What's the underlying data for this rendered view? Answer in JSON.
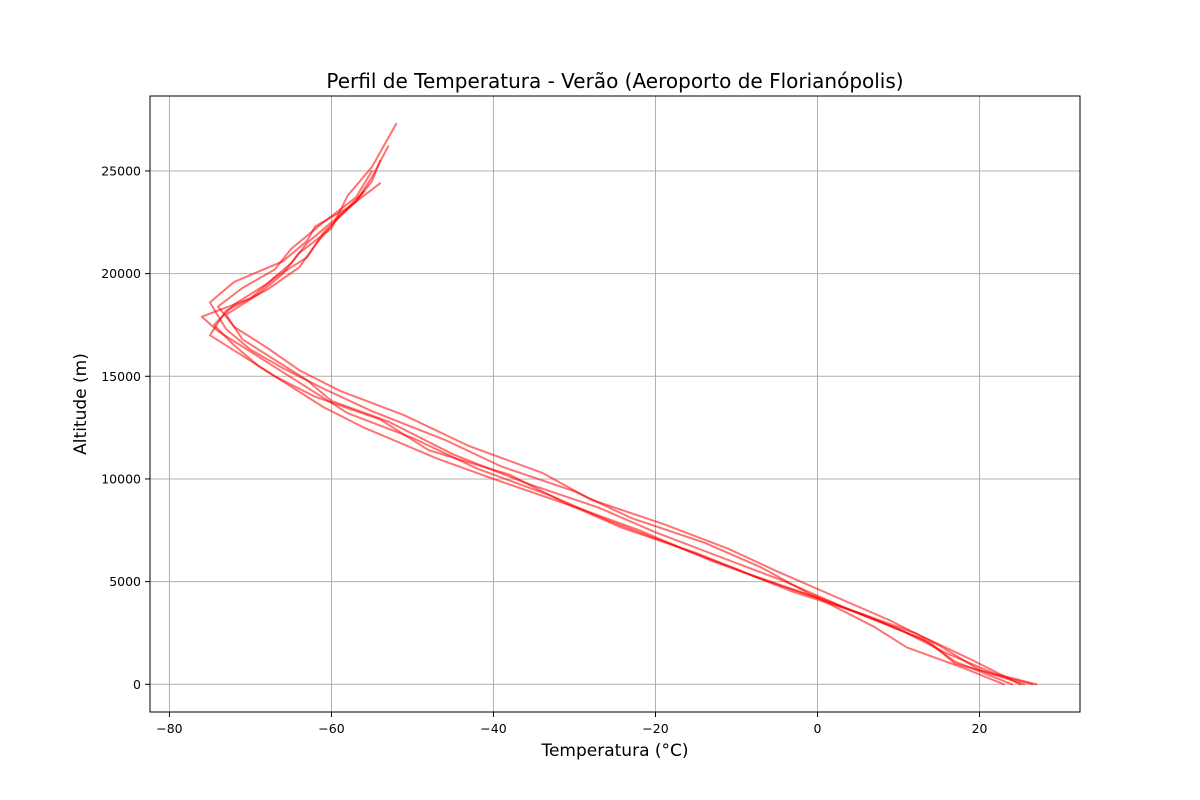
{
  "chart_data": {
    "type": "line",
    "title": "Perfil de Temperatura - Verão (Aeroporto de Florianópolis)",
    "xlabel": "Temperatura (°C)",
    "ylabel": "Altitude (m)",
    "xlim": [
      -82.4,
      32.4
    ],
    "ylim": [
      -1350,
      28650
    ],
    "xticks": [
      -80,
      -60,
      -40,
      -20,
      0,
      20
    ],
    "yticks": [
      0,
      5000,
      10000,
      15000,
      20000,
      25000
    ],
    "grid": true,
    "line_color": "#ff0000",
    "line_opacity": 0.55,
    "series": [
      {
        "x": [
          26.5,
          17,
          14,
          8,
          1.5,
          -6,
          -13,
          -22,
          -29,
          -40,
          -47,
          -56,
          -61,
          -65,
          -69,
          -72,
          -74.5,
          -72,
          -68,
          -65,
          -63,
          -60,
          -57,
          -55,
          -54
        ],
        "y": [
          0,
          1000,
          2000,
          3000,
          4000,
          5000,
          6000,
          7500,
          8500,
          10000,
          11000,
          12500,
          13500,
          14500,
          15500,
          16500,
          17500,
          18500,
          19500,
          20500,
          21500,
          22500,
          23500,
          24500,
          25500
        ]
      },
      {
        "x": [
          25,
          19,
          12,
          5,
          -3,
          -10,
          -18,
          -26,
          -33,
          -42,
          -50,
          -58,
          -62,
          -66,
          -70,
          -74,
          -76,
          -70,
          -67,
          -63,
          -61,
          -57,
          -55,
          -53
        ],
        "y": [
          0,
          1200,
          2500,
          3500,
          4500,
          5600,
          6800,
          8000,
          9200,
          10500,
          12000,
          13200,
          14200,
          15200,
          16200,
          17200,
          17900,
          18800,
          19800,
          20800,
          22000,
          23500,
          24700,
          26200
        ]
      },
      {
        "x": [
          27,
          22,
          16,
          10,
          3,
          -4,
          -12,
          -20,
          -27,
          -36,
          -45,
          -53,
          -60,
          -63,
          -67,
          -71,
          -73,
          -69,
          -66,
          -64,
          -60,
          -58,
          -55,
          -52
        ],
        "y": [
          0,
          500,
          1500,
          2700,
          3800,
          5000,
          6200,
          7400,
          8600,
          9800,
          11200,
          12800,
          13800,
          14800,
          15800,
          16800,
          18000,
          19000,
          20000,
          21000,
          22200,
          23800,
          25200,
          27300
        ]
      },
      {
        "x": [
          23,
          18,
          11,
          7,
          0,
          -8,
          -15,
          -24,
          -31,
          -38,
          -48,
          -54,
          -62,
          -67,
          -71,
          -75,
          -73,
          -68,
          -64,
          -62,
          -59,
          -56
        ],
        "y": [
          0,
          800,
          1800,
          2800,
          4200,
          5300,
          6400,
          7600,
          8800,
          10200,
          11400,
          12900,
          14000,
          15000,
          16000,
          17000,
          18200,
          19200,
          20300,
          21400,
          22800,
          24000
        ]
      },
      {
        "x": [
          25.5,
          20,
          15,
          9,
          2,
          -5,
          -11,
          -19,
          -28,
          -34,
          -43,
          -51,
          -59,
          -64,
          -68,
          -72,
          -74,
          -71,
          -67,
          -65,
          -61,
          -57,
          -55
        ],
        "y": [
          0,
          700,
          1900,
          3100,
          4300,
          5500,
          6600,
          7800,
          9000,
          10300,
          11600,
          13100,
          14300,
          15300,
          16400,
          17400,
          18400,
          19300,
          20200,
          21200,
          22500,
          23700,
          25000
        ]
      },
      {
        "x": [
          24,
          17,
          13,
          6,
          -1,
          -7,
          -14,
          -23,
          -30,
          -39,
          -46,
          -55,
          -61,
          -66,
          -70,
          -73,
          -75,
          -72,
          -66,
          -63,
          -62,
          -58,
          -54
        ],
        "y": [
          0,
          1100,
          2200,
          3300,
          4400,
          5700,
          6900,
          8100,
          9400,
          10600,
          11900,
          13300,
          14400,
          15400,
          16300,
          17300,
          18600,
          19600,
          20600,
          21600,
          22300,
          23200,
          24400
        ]
      }
    ]
  }
}
